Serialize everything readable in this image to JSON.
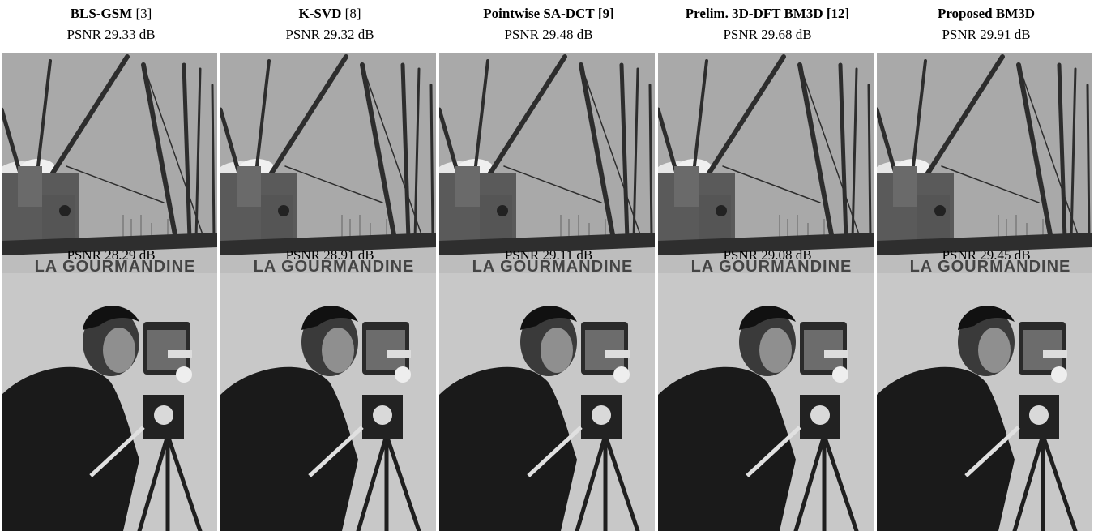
{
  "columns": [
    {
      "method_name": "BLS-GSM",
      "ref": "[3]",
      "boat_psnr": "PSNR 29.33 dB",
      "cameraman_psnr": "PSNR 28.29 dB"
    },
    {
      "method_name": "K-SVD",
      "ref": "[8]",
      "boat_psnr": "PSNR 29.32 dB",
      "cameraman_psnr": "PSNR 28.91 dB"
    },
    {
      "method_name": "Pointwise SA-DCT",
      "ref": "[9]",
      "boat_psnr": "PSNR 29.48 dB",
      "cameraman_psnr": "PSNR 29.11 dB"
    },
    {
      "method_name": "Prelim. 3D-DFT BM3D",
      "ref": "[12]",
      "boat_psnr": "PSNR 29.68 dB",
      "cameraman_psnr": "PSNR 29.08 dB"
    },
    {
      "method_name": "Proposed BM3D",
      "ref": "",
      "boat_psnr": "PSNR 29.91 dB",
      "cameraman_psnr": "PSNR 29.45 dB"
    }
  ],
  "boat_hull_text": "LA GOURMANDINE",
  "colors": {
    "boat_sky": "#a8a8a8",
    "hull_band": "#2e2e2e",
    "hull_body": "#bdbdbd",
    "cameraman_bg": "#c8c8c8",
    "coat": "#1a1a1a"
  }
}
